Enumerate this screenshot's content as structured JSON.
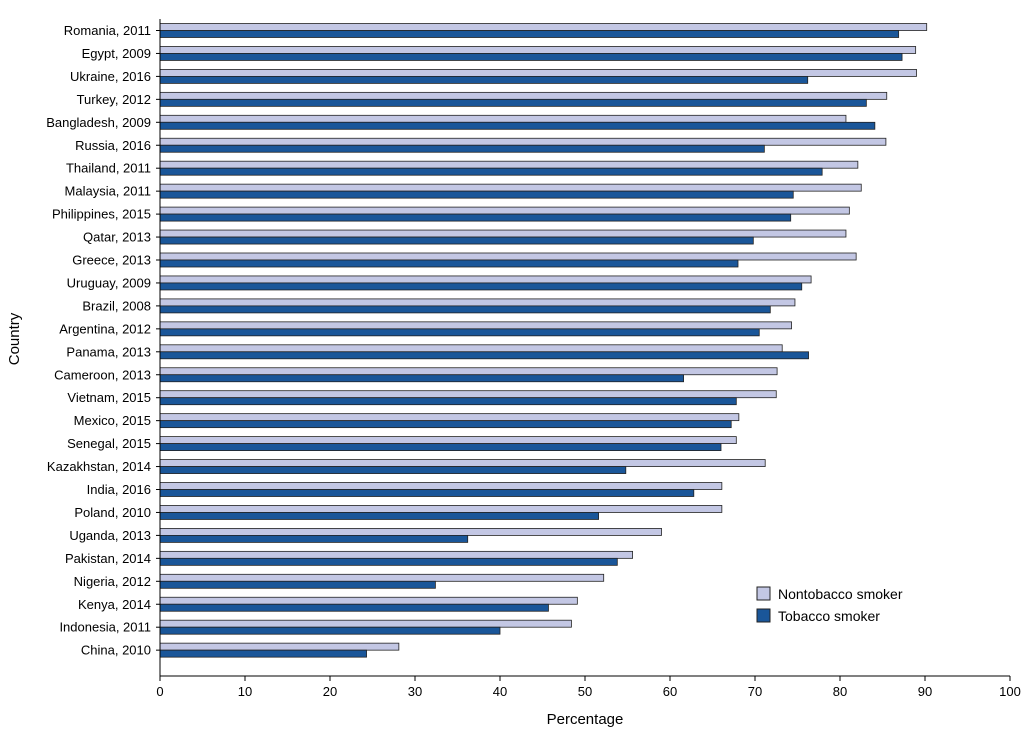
{
  "chart_data": {
    "type": "bar",
    "orientation": "horizontal",
    "xlabel": "Percentage",
    "ylabel": "Country",
    "xlim": [
      0,
      100
    ],
    "xticks": [
      0,
      10,
      20,
      30,
      40,
      50,
      60,
      70,
      80,
      90,
      100
    ],
    "legend_placement": "bottom-right",
    "grid": false,
    "categories": [
      "Romania, 2011",
      "Egypt, 2009",
      "Ukraine, 2016",
      "Turkey, 2012",
      "Bangladesh, 2009",
      "Russia, 2016",
      "Thailand, 2011",
      "Malaysia, 2011",
      "Philippines, 2015",
      "Qatar, 2013",
      "Greece, 2013",
      "Uruguay, 2009",
      "Brazil, 2008",
      "Argentina, 2012",
      "Panama, 2013",
      "Cameroon, 2013",
      "Vietnam, 2015",
      "Mexico, 2015",
      "Senegal, 2015",
      "Kazakhstan, 2014",
      "India, 2016",
      "Poland, 2010",
      "Uganda, 2013",
      "Pakistan, 2014",
      "Nigeria, 2012",
      "Kenya, 2014",
      "Indonesia, 2011",
      "China, 2010"
    ],
    "series": [
      {
        "name": "Nontobacco smoker",
        "color": "#c3c7e4",
        "values": [
          90.2,
          88.9,
          89.0,
          85.5,
          80.7,
          85.4,
          82.1,
          82.5,
          81.1,
          80.7,
          81.9,
          76.6,
          74.7,
          74.3,
          73.2,
          72.6,
          72.5,
          68.1,
          67.8,
          71.2,
          66.1,
          66.1,
          59.0,
          55.6,
          52.2,
          49.1,
          48.4,
          28.1
        ]
      },
      {
        "name": "Tobacco smoker",
        "color": "#1a5699",
        "values": [
          86.9,
          87.3,
          76.2,
          83.1,
          84.1,
          71.1,
          77.9,
          74.5,
          74.2,
          69.8,
          68.0,
          75.5,
          71.8,
          70.5,
          76.3,
          61.6,
          67.8,
          67.2,
          66.0,
          54.8,
          62.8,
          51.6,
          36.2,
          53.8,
          32.4,
          45.7,
          40.0,
          24.3
        ]
      }
    ]
  }
}
